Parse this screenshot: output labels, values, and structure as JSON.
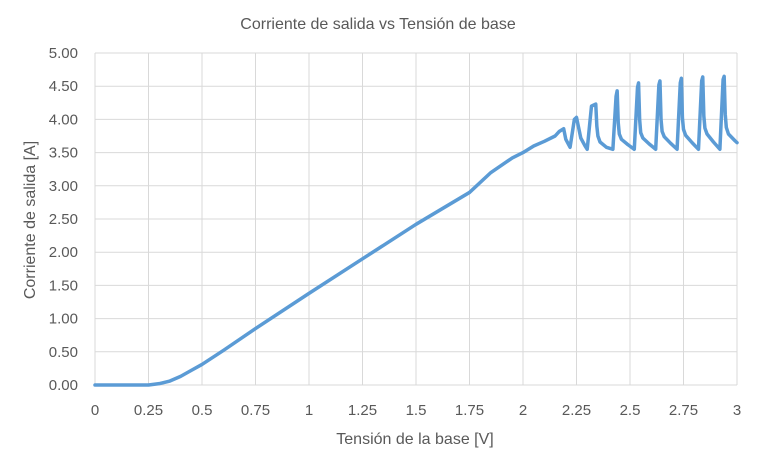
{
  "chart_data": {
    "type": "line",
    "title": "Corriente de salida vs Tensión de base",
    "xlabel": "Tensión de la base [V]",
    "ylabel": "Corriente de salida [A]",
    "xlim": [
      0,
      3
    ],
    "ylim": [
      0,
      5
    ],
    "x_ticks": [
      "0",
      "0.25",
      "0.5",
      "0.75",
      "1",
      "1.25",
      "1.5",
      "1.75",
      "2",
      "2.25",
      "2.5",
      "2.75",
      "3"
    ],
    "x_tick_values": [
      0,
      0.25,
      0.5,
      0.75,
      1,
      1.25,
      1.5,
      1.75,
      2,
      2.25,
      2.5,
      2.75,
      3
    ],
    "y_ticks": [
      "0.00",
      "0.50",
      "1.00",
      "1.50",
      "2.00",
      "2.50",
      "3.00",
      "3.50",
      "4.00",
      "4.50",
      "5.00"
    ],
    "y_tick_values": [
      0,
      0.5,
      1,
      1.5,
      2,
      2.5,
      3,
      3.5,
      4,
      4.5,
      5
    ],
    "grid": true,
    "legend": "none",
    "colors": {
      "series": "#5b9bd5",
      "grid": "#d9d9d9",
      "text": "#595959"
    },
    "series": [
      {
        "x": [
          0,
          0.25,
          0.3,
          0.35,
          0.4,
          0.45,
          0.5,
          0.6,
          0.75,
          1.0,
          1.25,
          1.5,
          1.75,
          1.85,
          1.95,
          2.0,
          2.05,
          2.1,
          2.15,
          2.17,
          2.19,
          2.2,
          2.22,
          2.24,
          2.25,
          2.27,
          2.29,
          2.3,
          2.32,
          2.34,
          2.345,
          2.35,
          2.36,
          2.39,
          2.42,
          2.435,
          2.44,
          2.445,
          2.45,
          2.46,
          2.49,
          2.52,
          2.535,
          2.54,
          2.545,
          2.55,
          2.56,
          2.59,
          2.62,
          2.635,
          2.64,
          2.645,
          2.65,
          2.66,
          2.69,
          2.72,
          2.735,
          2.74,
          2.745,
          2.75,
          2.76,
          2.79,
          2.82,
          2.835,
          2.84,
          2.845,
          2.85,
          2.86,
          2.89,
          2.92,
          2.935,
          2.94,
          2.945,
          2.95,
          2.96,
          2.99,
          3.0
        ],
        "y": [
          0,
          0,
          0.02,
          0.06,
          0.13,
          0.22,
          0.31,
          0.52,
          0.85,
          1.38,
          1.9,
          2.42,
          2.9,
          3.2,
          3.42,
          3.5,
          3.6,
          3.67,
          3.75,
          3.82,
          3.86,
          3.7,
          3.58,
          4.0,
          4.03,
          3.72,
          3.6,
          3.55,
          4.2,
          4.23,
          3.9,
          3.75,
          3.66,
          3.58,
          3.55,
          4.35,
          4.43,
          3.95,
          3.78,
          3.7,
          3.62,
          3.55,
          4.48,
          4.55,
          4.0,
          3.8,
          3.72,
          3.63,
          3.55,
          4.52,
          4.58,
          4.0,
          3.82,
          3.74,
          3.64,
          3.55,
          4.55,
          4.62,
          4.02,
          3.85,
          3.76,
          3.65,
          3.55,
          4.58,
          4.64,
          4.05,
          3.87,
          3.78,
          3.66,
          3.55,
          4.6,
          4.65,
          4.08,
          3.88,
          3.78,
          3.68,
          3.65
        ]
      }
    ]
  }
}
